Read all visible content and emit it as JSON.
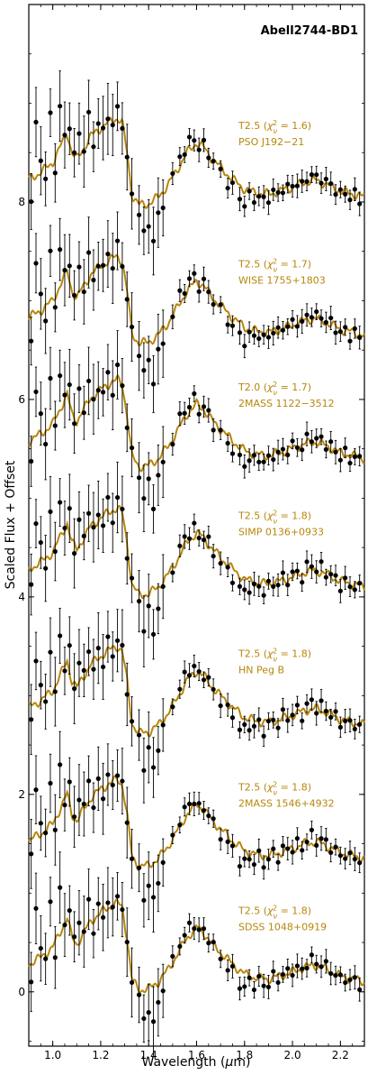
{
  "chart_data": {
    "type": "line",
    "title": "Abell2744-BD1",
    "xlabel": "Wavelength (μm)",
    "ylabel": "Scaled Flux + Offset",
    "xlim": [
      0.9,
      2.3
    ],
    "ylim": [
      -0.55,
      10.0
    ],
    "x_ticks": [
      1.0,
      1.2,
      1.4,
      1.6,
      1.8,
      2.0,
      2.2
    ],
    "x_tick_labels": [
      "1.0",
      "1.2",
      "1.4",
      "1.6",
      "1.8",
      "2.0",
      "2.2"
    ],
    "y_ticks": [
      0,
      2,
      4,
      6,
      8
    ],
    "y_tick_labels": [
      "0",
      "2",
      "4",
      "6",
      "8"
    ],
    "grid": false,
    "colors": {
      "template": "#b8860b",
      "data": "#000000"
    },
    "template_shape": {
      "x": [
        0.9,
        0.95,
        1.0,
        1.03,
        1.06,
        1.08,
        1.1,
        1.13,
        1.16,
        1.2,
        1.23,
        1.25,
        1.27,
        1.29,
        1.31,
        1.33,
        1.36,
        1.4,
        1.44,
        1.48,
        1.52,
        1.56,
        1.6,
        1.63,
        1.66,
        1.7,
        1.75,
        1.8,
        1.85,
        1.9,
        1.95,
        2.0,
        2.05,
        2.1,
        2.15,
        2.2,
        2.25,
        2.3
      ],
      "y": [
        0.28,
        0.35,
        0.45,
        0.6,
        0.75,
        0.55,
        0.48,
        0.6,
        0.72,
        0.8,
        0.85,
        0.88,
        0.9,
        0.85,
        0.55,
        0.12,
        0.02,
        0.03,
        0.1,
        0.22,
        0.38,
        0.55,
        0.65,
        0.6,
        0.5,
        0.4,
        0.28,
        0.18,
        0.14,
        0.13,
        0.16,
        0.2,
        0.25,
        0.27,
        0.22,
        0.16,
        0.13,
        0.1
      ]
    },
    "data_shape": {
      "x": [
        0.91,
        0.93,
        0.95,
        0.97,
        0.99,
        1.01,
        1.03,
        1.05,
        1.07,
        1.09,
        1.11,
        1.13,
        1.15,
        1.17,
        1.19,
        1.21,
        1.23,
        1.25,
        1.27,
        1.29,
        1.31,
        1.33,
        1.36,
        1.38,
        1.4,
        1.42,
        1.44,
        1.46,
        1.5,
        1.53,
        1.55,
        1.57,
        1.59,
        1.61,
        1.63,
        1.65,
        1.67,
        1.7,
        1.73,
        1.75,
        1.78,
        1.8,
        1.82,
        1.84,
        1.86,
        1.88,
        1.9,
        1.92,
        1.94,
        1.96,
        1.98,
        2.0,
        2.02,
        2.04,
        2.06,
        2.08,
        2.1,
        2.12,
        2.14,
        2.16,
        2.18,
        2.2,
        2.22,
        2.24,
        2.26,
        2.28
      ],
      "y": [
        0.1,
        0.8,
        0.5,
        0.3,
        0.9,
        0.4,
        1.0,
        0.7,
        0.85,
        0.5,
        0.75,
        0.6,
        0.9,
        0.65,
        0.85,
        0.75,
        0.95,
        0.8,
        1.0,
        0.85,
        0.45,
        0.15,
        -0.05,
        -0.3,
        -0.15,
        -0.35,
        -0.1,
        0.05,
        0.3,
        0.5,
        0.58,
        0.65,
        0.7,
        0.6,
        0.62,
        0.55,
        0.45,
        0.35,
        0.25,
        0.2,
        0.08,
        0.05,
        0.1,
        0.08,
        0.12,
        0.05,
        0.1,
        0.15,
        0.12,
        0.2,
        0.18,
        0.22,
        0.25,
        0.2,
        0.3,
        0.33,
        0.28,
        0.3,
        0.25,
        0.22,
        0.18,
        0.12,
        0.15,
        0.1,
        0.12,
        0.08
      ]
    },
    "series": [
      {
        "name": "SDSS 1048+0919",
        "offset": 0.0,
        "label_spt": "T2.5",
        "label_chi2": "1.8"
      },
      {
        "name": "2MASS 1546+4932",
        "offset": 1.25,
        "label_spt": "T2.5",
        "label_chi2": "1.8"
      },
      {
        "name": "HN Peg B",
        "offset": 2.6,
        "label_spt": "T2.5",
        "label_chi2": "1.8"
      },
      {
        "name": "SIMP 0136+0933",
        "offset": 4.0,
        "label_spt": "T2.5",
        "label_chi2": "1.8"
      },
      {
        "name": "2MASS 1122−3512",
        "offset": 5.3,
        "label_spt": "T2.0",
        "label_chi2": "1.7"
      },
      {
        "name": "WISE 1755+1803",
        "offset": 6.55,
        "label_spt": "T2.5",
        "label_chi2": "1.7"
      },
      {
        "name": "PSO J192−21",
        "offset": 7.95,
        "label_spt": "T2.5",
        "label_chi2": "1.6"
      }
    ]
  }
}
